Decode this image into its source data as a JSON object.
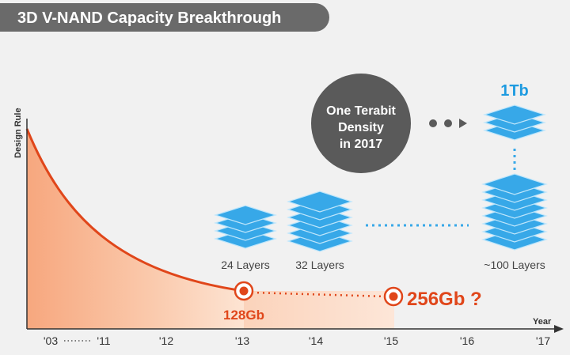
{
  "slide": {
    "title": "3D V-NAND Capacity Breakthrough"
  },
  "chart_data": {
    "type": "area",
    "ylabel": "Design Rule",
    "xlabel": "Year",
    "categories": [
      "'03",
      "'11",
      "'12",
      "'13",
      "'14",
      "'15",
      "'16",
      "'17"
    ],
    "markers": [
      {
        "label": "128Gb",
        "at": "'13"
      },
      {
        "label": "256Gb ?",
        "at": "'15"
      }
    ],
    "stacks": [
      {
        "label": "24 Layers",
        "layers": 24
      },
      {
        "label": "32 Layers",
        "layers": 32
      },
      {
        "label": "~100 Layers",
        "layers": 100
      }
    ],
    "top_stack_label": "1Tb",
    "callout": {
      "lines": [
        "One Terabit",
        "Density",
        "in 2017"
      ]
    },
    "colors": {
      "curve": "#e0461a",
      "fill": "#f9b48e",
      "marker": "#e0461a",
      "stack": "#37a8e8",
      "accent_blue": "#1e9be0",
      "circle": "#5a5a5a",
      "title_bar": "#6a6a6a"
    }
  }
}
